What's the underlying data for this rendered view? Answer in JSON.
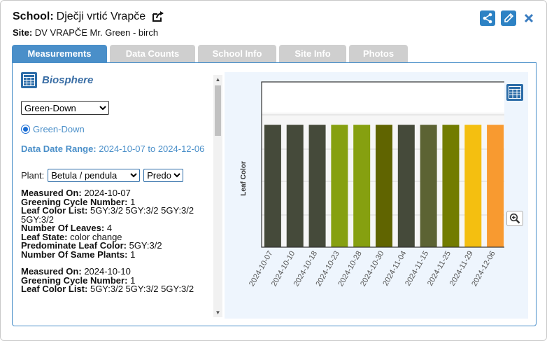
{
  "header": {
    "school_label": "School:",
    "school_name": "Dječji vrtić Vrapče",
    "site_label": "Site:",
    "site_name": "DV VRAPČE Mr. Green - birch"
  },
  "tabs": [
    {
      "label": "Measurements",
      "active": true
    },
    {
      "label": "Data Counts",
      "active": false
    },
    {
      "label": "School Info",
      "active": false
    },
    {
      "label": "Site Info",
      "active": false
    },
    {
      "label": "Photos",
      "active": false
    }
  ],
  "left": {
    "title": "Biosphere",
    "protocol_select": "Green-Down",
    "radio_label": "Green-Down",
    "date_range_label": "Data Date Range:",
    "date_range_value": "2024-10-07 to 2024-12-06",
    "plant_label": "Plant:",
    "plant_select": "Betula / pendula",
    "attr_select": "Predominate",
    "records": [
      {
        "measured_on_label": "Measured On:",
        "measured_on": "2024-10-07",
        "cycle_label": "Greening Cycle Number:",
        "cycle": "1",
        "color_list_label": "Leaf Color List:",
        "color_list": "5GY:3/2 5GY:3/2 5GY:3/2 5GY:3/2",
        "num_leaves_label": "Number Of Leaves:",
        "num_leaves": "4",
        "leaf_state_label": "Leaf State:",
        "leaf_state": "color change",
        "predominate_label": "Predominate Leaf Color:",
        "predominate": "5GY:3/2",
        "same_plants_label": "Number Of Same Plants:",
        "same_plants": "1"
      },
      {
        "measured_on_label": "Measured On:",
        "measured_on": "2024-10-10",
        "cycle_label": "Greening Cycle Number:",
        "cycle": "1",
        "color_list_label": "Leaf Color List:",
        "color_list": "5GY:3/2 5GY:3/2 5GY:3/2"
      }
    ]
  },
  "chart_data": {
    "type": "bar",
    "ylabel": "Leaf Color",
    "xlabel": "",
    "categories": [
      "2024-10-07",
      "2024-10-10",
      "2024-10-18",
      "2024-10-23",
      "2024-10-28",
      "2024-10-30",
      "2024-11-04",
      "2024-11-15",
      "2024-11-25",
      "2024-11-29",
      "2024-12-06"
    ],
    "values": [
      1,
      1,
      1,
      1,
      1,
      1,
      1,
      1,
      1,
      1,
      1
    ],
    "colors": [
      "#454a3a",
      "#454a3a",
      "#454a3a",
      "#86a010",
      "#86a010",
      "#606400",
      "#454a3a",
      "#5c6333",
      "#727c00",
      "#f4bf10",
      "#f89a30"
    ],
    "ylim": [
      0,
      1.35
    ],
    "grid": true,
    "legend": "none"
  },
  "icons": {
    "share": "share-icon",
    "edit": "pencil-icon",
    "close": "close-icon",
    "external": "external-link-icon",
    "table": "table-icon",
    "zoom": "zoom-icon"
  }
}
